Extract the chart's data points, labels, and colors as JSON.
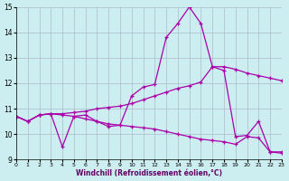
{
  "xlabel": "Windchill (Refroidissement éolien,°C)",
  "xlim": [
    0,
    23
  ],
  "ylim": [
    9,
    15
  ],
  "yticks": [
    9,
    10,
    11,
    12,
    13,
    14,
    15
  ],
  "xticks": [
    0,
    1,
    2,
    3,
    4,
    5,
    6,
    7,
    8,
    9,
    10,
    11,
    12,
    13,
    14,
    15,
    16,
    17,
    18,
    19,
    20,
    21,
    22,
    23
  ],
  "bg_color": "#cceef0",
  "line_color": "#aa00aa",
  "grid_color": "#aabbcc",
  "series_zigzag_x": [
    0,
    1,
    2,
    3,
    4,
    5,
    6,
    7,
    8,
    9,
    10,
    11,
    12,
    13,
    14,
    15,
    16,
    17,
    18,
    19,
    20,
    21,
    22,
    23
  ],
  "series_zigzag_y": [
    10.7,
    10.5,
    10.75,
    10.8,
    9.5,
    10.7,
    10.75,
    10.5,
    10.3,
    10.35,
    11.5,
    11.85,
    11.95,
    13.8,
    14.35,
    15.0,
    14.35,
    12.65,
    12.5,
    9.9,
    9.95,
    10.5,
    9.3,
    9.3
  ],
  "series_rising_x": [
    0,
    1,
    2,
    3,
    4,
    5,
    6,
    7,
    8,
    9,
    10,
    11,
    12,
    13,
    14,
    15,
    16,
    17,
    18,
    19,
    20,
    21,
    22,
    23
  ],
  "series_rising_y": [
    10.7,
    10.5,
    10.75,
    10.8,
    10.8,
    10.85,
    10.9,
    11.0,
    11.05,
    11.1,
    11.2,
    11.35,
    11.5,
    11.65,
    11.8,
    11.9,
    12.05,
    12.65,
    12.65,
    12.55,
    12.4,
    12.3,
    12.2,
    12.1
  ],
  "series_declining_x": [
    0,
    1,
    2,
    3,
    4,
    5,
    6,
    7,
    8,
    9,
    10,
    11,
    12,
    13,
    14,
    15,
    16,
    17,
    18,
    19,
    20,
    21,
    22,
    23
  ],
  "series_declining_y": [
    10.7,
    10.5,
    10.75,
    10.8,
    10.75,
    10.7,
    10.6,
    10.5,
    10.4,
    10.35,
    10.3,
    10.25,
    10.2,
    10.1,
    10.0,
    9.9,
    9.8,
    9.75,
    9.7,
    9.6,
    9.9,
    9.85,
    9.3,
    9.25
  ]
}
